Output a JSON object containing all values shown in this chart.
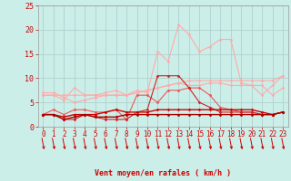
{
  "title": "",
  "xlabel": "Vent moyen/en rafales ( km/h )",
  "background_color": "#cceee8",
  "grid_color": "#aacccc",
  "x": [
    0,
    1,
    2,
    3,
    4,
    5,
    6,
    7,
    8,
    9,
    10,
    11,
    12,
    13,
    14,
    15,
    16,
    17,
    18,
    19,
    20,
    21,
    22,
    23
  ],
  "series": [
    {
      "y": [
        6.5,
        6.5,
        6.5,
        6.5,
        6.5,
        6.5,
        6.5,
        6.5,
        6.5,
        7.0,
        7.5,
        8.0,
        8.5,
        9.0,
        9.5,
        9.5,
        9.5,
        9.5,
        9.5,
        9.5,
        9.5,
        9.5,
        9.5,
        10.5
      ],
      "color": "#ffaaaa",
      "lw": 0.8,
      "marker": "D",
      "ms": 1.5
    },
    {
      "y": [
        6.5,
        6.5,
        5.5,
        8.0,
        6.5,
        6.5,
        7.0,
        7.5,
        6.5,
        7.5,
        7.0,
        15.5,
        13.5,
        21.0,
        19.0,
        15.5,
        16.5,
        18.0,
        18.0,
        9.0,
        8.5,
        6.5,
        8.5,
        10.5
      ],
      "color": "#ffaaaa",
      "lw": 0.8,
      "marker": "D",
      "ms": 1.5
    },
    {
      "y": [
        7.0,
        7.0,
        6.0,
        5.0,
        5.5,
        6.0,
        6.5,
        6.5,
        6.5,
        7.0,
        7.5,
        8.0,
        8.5,
        9.0,
        8.5,
        8.5,
        9.0,
        9.0,
        8.5,
        8.5,
        8.5,
        8.5,
        6.5,
        8.0
      ],
      "color": "#ffaaaa",
      "lw": 0.8,
      "marker": "D",
      "ms": 1.5
    },
    {
      "y": [
        2.5,
        3.5,
        2.5,
        3.5,
        3.5,
        3.0,
        3.0,
        3.5,
        1.5,
        6.5,
        6.5,
        5.0,
        7.5,
        7.5,
        8.0,
        8.0,
        6.5,
        4.0,
        3.5,
        3.0,
        3.0,
        2.5,
        2.5,
        3.0
      ],
      "color": "#ee5555",
      "lw": 0.8,
      "marker": "D",
      "ms": 1.5
    },
    {
      "y": [
        2.5,
        2.5,
        1.5,
        1.5,
        2.5,
        2.0,
        1.5,
        1.5,
        1.5,
        3.0,
        3.5,
        10.5,
        10.5,
        10.5,
        8.0,
        5.0,
        4.0,
        3.0,
        3.0,
        3.0,
        3.0,
        2.5,
        2.5,
        3.0
      ],
      "color": "#cc2222",
      "lw": 0.8,
      "marker": "D",
      "ms": 1.5
    },
    {
      "y": [
        2.5,
        2.5,
        2.0,
        2.5,
        2.5,
        2.5,
        3.0,
        3.5,
        3.0,
        3.0,
        3.0,
        3.5,
        3.5,
        3.5,
        3.5,
        3.5,
        3.5,
        3.5,
        3.5,
        3.5,
        3.5,
        3.0,
        2.5,
        3.0
      ],
      "color": "#cc0000",
      "lw": 1.0,
      "marker": "D",
      "ms": 1.5
    },
    {
      "y": [
        2.5,
        2.5,
        1.5,
        2.0,
        2.5,
        2.0,
        2.0,
        2.0,
        2.5,
        2.5,
        2.5,
        2.5,
        2.5,
        2.5,
        2.5,
        2.5,
        2.5,
        2.5,
        2.5,
        2.5,
        2.5,
        2.5,
        2.5,
        3.0
      ],
      "color": "#aa0000",
      "lw": 1.0,
      "marker": "D",
      "ms": 1.5
    }
  ],
  "arrow_color": "#cc0000",
  "ylim": [
    0,
    25
  ],
  "yticks": [
    0,
    5,
    10,
    15,
    20,
    25
  ],
  "xticks": [
    0,
    1,
    2,
    3,
    4,
    5,
    6,
    7,
    8,
    9,
    10,
    11,
    12,
    13,
    14,
    15,
    16,
    17,
    18,
    19,
    20,
    21,
    22,
    23
  ]
}
